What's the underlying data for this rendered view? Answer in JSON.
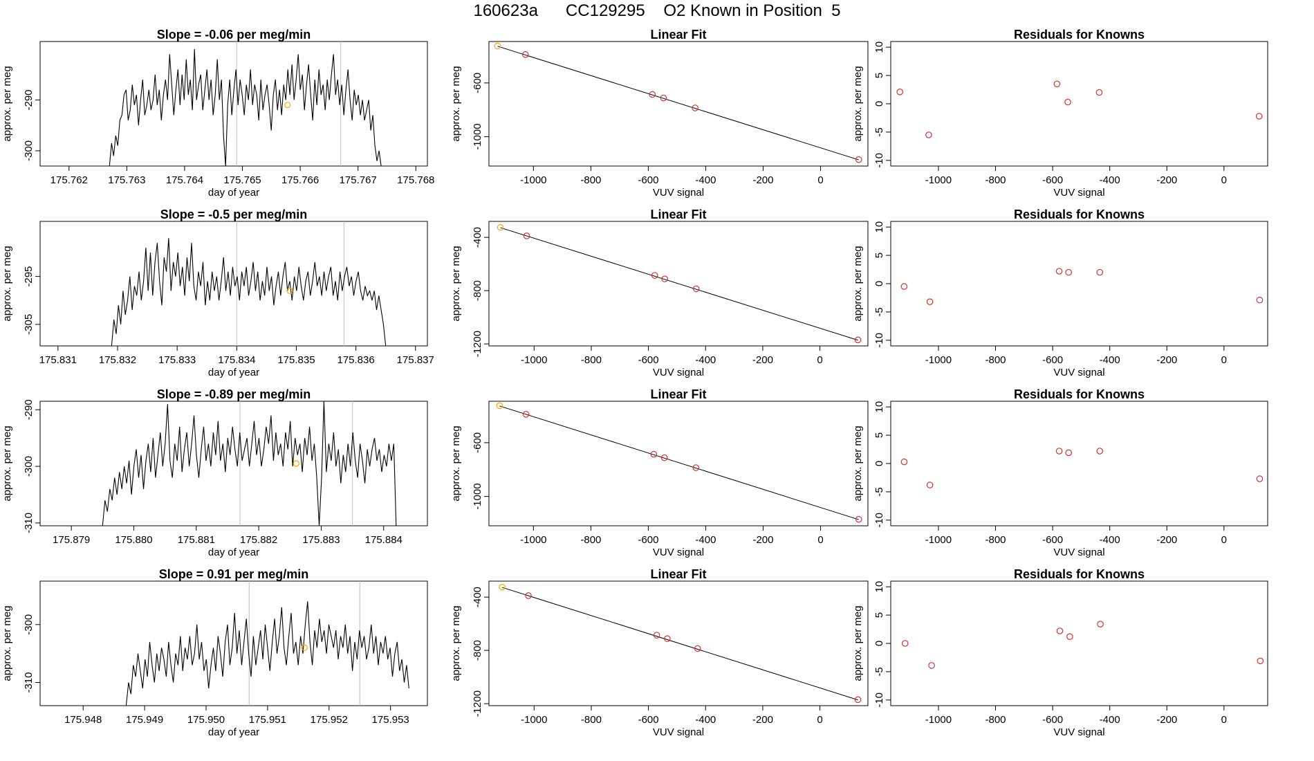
{
  "figure": {
    "title": "160623a      CC129295    O2 Known in Position  5",
    "colors": {
      "line": "#000000",
      "known_point": "#cd3333",
      "standard_point": "#ffa500",
      "marker_line": "#bebebe"
    }
  },
  "chart_data": [
    {
      "type": "line",
      "panel": "time-series-1",
      "title": "Slope =  -0.06  per meg/min",
      "xlabel": "day of year",
      "ylabel": "approx. per meg",
      "xlim": [
        175.7615,
        175.7682
      ],
      "ylim": [
        -303,
        -278.5
      ],
      "x_ticks": [
        175.762,
        175.763,
        175.764,
        175.765,
        175.766,
        175.767,
        175.768
      ],
      "x_tick_labels": [
        "175.762",
        "175.763",
        "175.764",
        "175.765",
        "175.766",
        "175.767",
        "175.768"
      ],
      "y_ticks": [
        -290,
        -300
      ],
      "y_tick_labels": [
        "-290",
        "-300"
      ],
      "vlines": [
        175.7649,
        175.7667
      ],
      "x_start": 175.7627,
      "x_end": 175.7674,
      "values": [
        -303,
        -298.5,
        -301,
        -297,
        -299,
        -294,
        -293,
        -289,
        -288,
        -294,
        -292,
        -287,
        -291,
        -289,
        -295,
        -290,
        -286,
        -293,
        -291,
        -288,
        -292,
        -290,
        -285,
        -291,
        -288,
        -294,
        -289,
        -286,
        -290,
        -281,
        -287,
        -293,
        -288,
        -284,
        -291,
        -285,
        -290,
        -282,
        -289,
        -286,
        -292,
        -280,
        -290,
        -287,
        -285,
        -292,
        -288,
        -284,
        -290,
        -286,
        -293,
        -289,
        -282,
        -290,
        -286,
        -297,
        -303,
        -291,
        -286,
        -293,
        -288,
        -284,
        -291,
        -286,
        -289,
        -293,
        -287,
        -290,
        -284,
        -291,
        -287,
        -289,
        -294,
        -286,
        -292,
        -289,
        -287,
        -291,
        -296,
        -289,
        -286,
        -292,
        -288,
        -293,
        -287,
        -290,
        -284,
        -289,
        -283,
        -290,
        -286,
        -281,
        -288,
        -285,
        -292,
        -287,
        -283,
        -289,
        -294,
        -286,
        -291,
        -284,
        -289,
        -287,
        -292,
        -286,
        -290,
        -285,
        -281,
        -289,
        -286,
        -291,
        -287,
        -293,
        -288,
        -284,
        -290,
        -294,
        -288,
        -291,
        -289,
        -293,
        -290,
        -294,
        -292,
        -290,
        -296,
        -293,
        -299,
        -302,
        -300,
        -303
      ],
      "standard_point": {
        "x": 175.76578,
        "y": -291
      }
    },
    {
      "type": "scatter",
      "panel": "linear-fit-1",
      "title": "Linear Fit",
      "xlabel": "VUV signal",
      "ylabel": "approx. per meg",
      "xlim": [
        -1155,
        165
      ],
      "ylim": [
        -1218,
        -292
      ],
      "x_ticks": [
        -1000,
        -800,
        -600,
        -400,
        -200,
        0
      ],
      "x_tick_labels": [
        "-1000",
        "-800",
        "-600",
        "-400",
        "-200",
        "0"
      ],
      "y_ticks": [
        -600,
        -1000
      ],
      "y_tick_labels": [
        "-600",
        "-1000"
      ],
      "points": [
        [
          -1125,
          -325
        ],
        [
          -1028,
          -389
        ],
        [
          -586,
          -686
        ],
        [
          -547,
          -712
        ],
        [
          -437,
          -786
        ],
        [
          133,
          -1170
        ]
      ],
      "fit_line": [
        [
          -1125,
          -327
        ],
        [
          133,
          -1172
        ]
      ],
      "highlight_index": 0
    },
    {
      "type": "scatter",
      "panel": "residuals-1",
      "title": "Residuals for Knowns",
      "xlabel": "VUV signal",
      "ylabel": "approx. per meg",
      "xlim": [
        -1167,
        153
      ],
      "ylim": [
        -11,
        11
      ],
      "x_ticks": [
        -1000,
        -800,
        -600,
        -400,
        -200,
        0
      ],
      "x_tick_labels": [
        "-1000",
        "-800",
        "-600",
        "-400",
        "-200",
        "0"
      ],
      "y_ticks": [
        10,
        5,
        0,
        -5,
        -10
      ],
      "y_tick_labels": [
        "10",
        "5",
        "0",
        "-5",
        "-10"
      ],
      "points": [
        [
          -1135,
          2.1
        ],
        [
          -1034,
          -5.5
        ],
        [
          -585,
          3.5
        ],
        [
          -547,
          0.3
        ],
        [
          -437,
          2.0
        ],
        [
          123,
          -2.2
        ]
      ]
    },
    {
      "type": "line",
      "panel": "time-series-2",
      "title": "Slope =  -0.5  per meg/min",
      "xlabel": "day of year",
      "ylabel": "approx. per meg",
      "xlim": [
        175.8307,
        175.8372
      ],
      "ylim": [
        -309.5,
        -283.5
      ],
      "x_ticks": [
        175.831,
        175.832,
        175.833,
        175.834,
        175.835,
        175.836,
        175.837
      ],
      "x_tick_labels": [
        "175.831",
        "175.832",
        "175.833",
        "175.834",
        "175.835",
        "175.836",
        "175.837"
      ],
      "y_ticks": [
        -295,
        -305
      ],
      "y_tick_labels": [
        "-295",
        "-305"
      ],
      "vlines": [
        175.834,
        175.8358
      ],
      "x_start": 175.8319,
      "x_end": 175.8365,
      "values": [
        -309.5,
        -304,
        -307,
        -301,
        -305,
        -298,
        -303,
        -300,
        -295,
        -302,
        -297,
        -299,
        -294,
        -300,
        -296,
        -289,
        -298,
        -290,
        -299,
        -292,
        -288,
        -296,
        -301,
        -291,
        -294,
        -287,
        -298,
        -292,
        -295,
        -290,
        -297,
        -293,
        -299,
        -291,
        -296,
        -288,
        -297,
        -300,
        -294,
        -297,
        -292,
        -301,
        -296,
        -300,
        -294,
        -298,
        -295,
        -300,
        -296,
        -291,
        -298,
        -294,
        -299,
        -293,
        -297,
        -295,
        -300,
        -294,
        -297,
        -293,
        -299,
        -296,
        -292,
        -298,
        -294,
        -300,
        -296,
        -299,
        -293,
        -298,
        -295,
        -301,
        -297,
        -294,
        -299,
        -295,
        -292,
        -298,
        -296,
        -300,
        -295,
        -298,
        -293,
        -297,
        -300,
        -296,
        -294,
        -299,
        -296,
        -292,
        -297,
        -295,
        -299,
        -294,
        -298,
        -295,
        -293,
        -299,
        -296,
        -300,
        -294,
        -298,
        -295,
        -293,
        -297,
        -295,
        -299,
        -296,
        -294,
        -298,
        -300,
        -297,
        -299,
        -298,
        -300,
        -298,
        -302,
        -299,
        -302,
        -305,
        -309.5
      ],
      "standard_point": {
        "x": 175.83489,
        "y": -298
      }
    },
    {
      "type": "scatter",
      "panel": "linear-fit-2",
      "title": "Linear Fit",
      "xlabel": "VUV signal",
      "ylabel": "approx. per meg",
      "xlim": [
        -1158,
        168
      ],
      "ylim": [
        -1215,
        -280
      ],
      "x_ticks": [
        -1000,
        -800,
        -600,
        -400,
        -200,
        0
      ],
      "x_tick_labels": [
        "-1000",
        "-800",
        "-600",
        "-400",
        "-200",
        "0"
      ],
      "y_ticks": [
        -400,
        -800,
        -1200
      ],
      "y_tick_labels": [
        "-400",
        "-800",
        "-1200"
      ],
      "points": [
        [
          -1118,
          -325
        ],
        [
          -1026,
          -389
        ],
        [
          -578,
          -686
        ],
        [
          -543,
          -712
        ],
        [
          -433,
          -786
        ],
        [
          133,
          -1170
        ]
      ],
      "fit_line": [
        [
          -1118,
          -327
        ],
        [
          133,
          -1172
        ]
      ],
      "highlight_index": 0
    },
    {
      "type": "scatter",
      "panel": "residuals-2",
      "title": "Residuals for Knowns",
      "xlabel": "VUV signal",
      "ylabel": "approx. per meg",
      "xlim": [
        -1167,
        153
      ],
      "ylim": [
        -11,
        11
      ],
      "x_ticks": [
        -1000,
        -800,
        -600,
        -400,
        -200,
        0
      ],
      "x_tick_labels": [
        "-1000",
        "-800",
        "-600",
        "-400",
        "-200",
        "0"
      ],
      "y_ticks": [
        10,
        5,
        0,
        -5,
        -10
      ],
      "y_tick_labels": [
        "10",
        "5",
        "0",
        "-5",
        "-10"
      ],
      "points": [
        [
          -1120,
          -0.5
        ],
        [
          -1030,
          -3.2
        ],
        [
          -577,
          2.2
        ],
        [
          -544,
          2.0
        ],
        [
          -435,
          2.0
        ],
        [
          125,
          -2.9
        ]
      ]
    },
    {
      "type": "line",
      "panel": "time-series-3",
      "title": "Slope =  -0.89  per meg/min",
      "xlabel": "day of year",
      "ylabel": "approx. per meg",
      "xlim": [
        175.8785,
        175.8847
      ],
      "ylim": [
        -310.5,
        -288.5
      ],
      "x_ticks": [
        175.879,
        175.88,
        175.881,
        175.882,
        175.883,
        175.884
      ],
      "x_tick_labels": [
        "175.879",
        "175.880",
        "175.881",
        "175.882",
        "175.883",
        "175.884"
      ],
      "y_ticks": [
        -290,
        -300,
        -310
      ],
      "y_tick_labels": [
        "-290",
        "-300",
        "-310"
      ],
      "vlines": [
        175.8817,
        175.8835
      ],
      "x_start": 175.8795,
      "x_end": 175.8842,
      "values": [
        -310.5,
        -306,
        -308,
        -304,
        -306,
        -302,
        -305,
        -301,
        -304,
        -300,
        -303,
        -299,
        -305,
        -300,
        -297,
        -302,
        -298,
        -304,
        -299,
        -296,
        -301,
        -295,
        -302,
        -298,
        -294,
        -300,
        -296,
        -289,
        -299,
        -302,
        -296,
        -299,
        -293,
        -301,
        -297,
        -294,
        -300,
        -296,
        -291,
        -298,
        -302,
        -297,
        -293,
        -299,
        -296,
        -300,
        -294,
        -298,
        -292,
        -299,
        -296,
        -301,
        -295,
        -298,
        -293,
        -297,
        -300,
        -294,
        -299,
        -297,
        -295,
        -300,
        -296,
        -292,
        -298,
        -295,
        -300,
        -297,
        -293,
        -296,
        -291,
        -299,
        -294,
        -298,
        -296,
        -300,
        -294,
        -297,
        -292,
        -300,
        -295,
        -298,
        -296,
        -301,
        -295,
        -298,
        -293,
        -299,
        -296,
        -302,
        -310.5,
        -302,
        -288.5,
        -301,
        -296,
        -299,
        -294,
        -300,
        -297,
        -303,
        -298,
        -301,
        -296,
        -300,
        -294,
        -299,
        -302,
        -296,
        -299,
        -303,
        -297,
        -300,
        -297,
        -295,
        -299,
        -297,
        -301,
        -298,
        -300,
        -296,
        -299,
        -296,
        -310.5
      ],
      "standard_point": {
        "x": 175.8826,
        "y": -299.5
      }
    },
    {
      "type": "scatter",
      "panel": "linear-fit-3",
      "title": "Linear Fit",
      "xlabel": "VUV signal",
      "ylabel": "approx. per meg",
      "xlim": [
        -1155,
        165
      ],
      "ylim": [
        -1218,
        -292
      ],
      "x_ticks": [
        -1000,
        -800,
        -600,
        -400,
        -200,
        0
      ],
      "x_tick_labels": [
        "-1000",
        "-800",
        "-600",
        "-400",
        "-200",
        "0"
      ],
      "y_ticks": [
        -600,
        -1000
      ],
      "y_tick_labels": [
        "-600",
        "-1000"
      ],
      "points": [
        [
          -1118,
          -325
        ],
        [
          -1026,
          -389
        ],
        [
          -581,
          -686
        ],
        [
          -544,
          -712
        ],
        [
          -434,
          -786
        ],
        [
          133,
          -1170
        ]
      ],
      "fit_line": [
        [
          -1118,
          -327
        ],
        [
          133,
          -1172
        ]
      ],
      "highlight_index": 0
    },
    {
      "type": "scatter",
      "panel": "residuals-3",
      "title": "Residuals for Knowns",
      "xlabel": "VUV signal",
      "ylabel": "approx. per meg",
      "xlim": [
        -1167,
        153
      ],
      "ylim": [
        -11,
        11
      ],
      "x_ticks": [
        -1000,
        -800,
        -600,
        -400,
        -200,
        0
      ],
      "x_tick_labels": [
        "-1000",
        "-800",
        "-600",
        "-400",
        "-200",
        "0"
      ],
      "y_ticks": [
        10,
        5,
        0,
        -5,
        -10
      ],
      "y_tick_labels": [
        "10",
        "5",
        "0",
        "-5",
        "-10"
      ],
      "points": [
        [
          -1120,
          0.3
        ],
        [
          -1030,
          -3.8
        ],
        [
          -577,
          2.2
        ],
        [
          -544,
          1.9
        ],
        [
          -435,
          2.2
        ],
        [
          125,
          -2.7
        ]
      ]
    },
    {
      "type": "line",
      "panel": "time-series-4",
      "title": "Slope =  0.91  per meg/min",
      "xlabel": "day of year",
      "ylabel": "approx. per meg",
      "xlim": [
        175.9473,
        175.9536
      ],
      "ylim": [
        -314,
        -292.5
      ],
      "x_ticks": [
        175.948,
        175.949,
        175.95,
        175.951,
        175.952,
        175.953
      ],
      "x_tick_labels": [
        "175.948",
        "175.949",
        "175.950",
        "175.951",
        "175.952",
        "175.953"
      ],
      "y_ticks": [
        -300,
        -310
      ],
      "y_tick_labels": [
        "-300",
        "-310"
      ],
      "vlines": [
        175.9507,
        175.9525
      ],
      "x_start": 175.9487,
      "x_end": 175.9533,
      "values": [
        -314,
        -310,
        -312,
        -307,
        -309,
        -305,
        -308,
        -311,
        -306,
        -309,
        -303,
        -307,
        -310,
        -305,
        -308,
        -304,
        -306,
        -309,
        -303,
        -307,
        -310,
        -305,
        -307,
        -302,
        -308,
        -304,
        -306,
        -302,
        -307,
        -305,
        -300,
        -306,
        -303,
        -308,
        -306,
        -311,
        -307,
        -304,
        -308,
        -302,
        -305,
        -309,
        -303,
        -300,
        -307,
        -304,
        -298,
        -305,
        -301,
        -307,
        -303,
        -299,
        -305,
        -309,
        -302,
        -307,
        -304,
        -301,
        -306,
        -300,
        -304,
        -308,
        -303,
        -299,
        -305,
        -302,
        -297,
        -304,
        -307,
        -302,
        -298,
        -305,
        -303,
        -307,
        -302,
        -305,
        -300,
        -296,
        -303,
        -307,
        -301,
        -304,
        -299,
        -303,
        -301,
        -305,
        -300,
        -302,
        -304,
        -301,
        -306,
        -302,
        -304,
        -300,
        -305,
        -302,
        -308,
        -303,
        -306,
        -301,
        -304,
        -302,
        -306,
        -304,
        -300,
        -305,
        -302,
        -307,
        -303,
        -305,
        -302,
        -306,
        -304,
        -309,
        -305,
        -303,
        -308,
        -306,
        -310,
        -307,
        -311
      ],
      "standard_point": {
        "x": 175.9516,
        "y": -304
      }
    },
    {
      "type": "scatter",
      "panel": "linear-fit-4",
      "title": "Linear Fit",
      "xlabel": "VUV signal",
      "ylabel": "approx. per meg",
      "xlim": [
        -1158,
        168
      ],
      "ylim": [
        -1215,
        -280
      ],
      "x_ticks": [
        -1000,
        -800,
        -600,
        -400,
        -200,
        0
      ],
      "x_tick_labels": [
        "-1000",
        "-800",
        "-600",
        "-400",
        "-200",
        "0"
      ],
      "y_ticks": [
        -400,
        -800,
        -1200
      ],
      "y_tick_labels": [
        "-400",
        "-800",
        "-1200"
      ],
      "points": [
        [
          -1112,
          -325
        ],
        [
          -1020,
          -389
        ],
        [
          -571,
          -686
        ],
        [
          -534,
          -712
        ],
        [
          -428,
          -786
        ],
        [
          133,
          -1170
        ]
      ],
      "fit_line": [
        [
          -1112,
          -327
        ],
        [
          133,
          -1172
        ]
      ],
      "highlight_index": 0
    },
    {
      "type": "scatter",
      "panel": "residuals-4",
      "title": "Residuals for Knowns",
      "xlabel": "VUV signal",
      "ylabel": "approx. per meg",
      "xlim": [
        -1167,
        153
      ],
      "ylim": [
        -11,
        11
      ],
      "x_ticks": [
        -1000,
        -800,
        -600,
        -400,
        -200,
        0
      ],
      "x_tick_labels": [
        "-1000",
        "-800",
        "-600",
        "-400",
        "-200",
        "0"
      ],
      "y_ticks": [
        10,
        5,
        0,
        -5,
        -10
      ],
      "y_tick_labels": [
        "10",
        "5",
        "0",
        "-5",
        "-10"
      ],
      "points": [
        [
          -1117,
          0.0
        ],
        [
          -1024,
          -3.9
        ],
        [
          -575,
          2.2
        ],
        [
          -540,
          1.2
        ],
        [
          -433,
          3.4
        ],
        [
          127,
          -3.1
        ]
      ]
    }
  ]
}
